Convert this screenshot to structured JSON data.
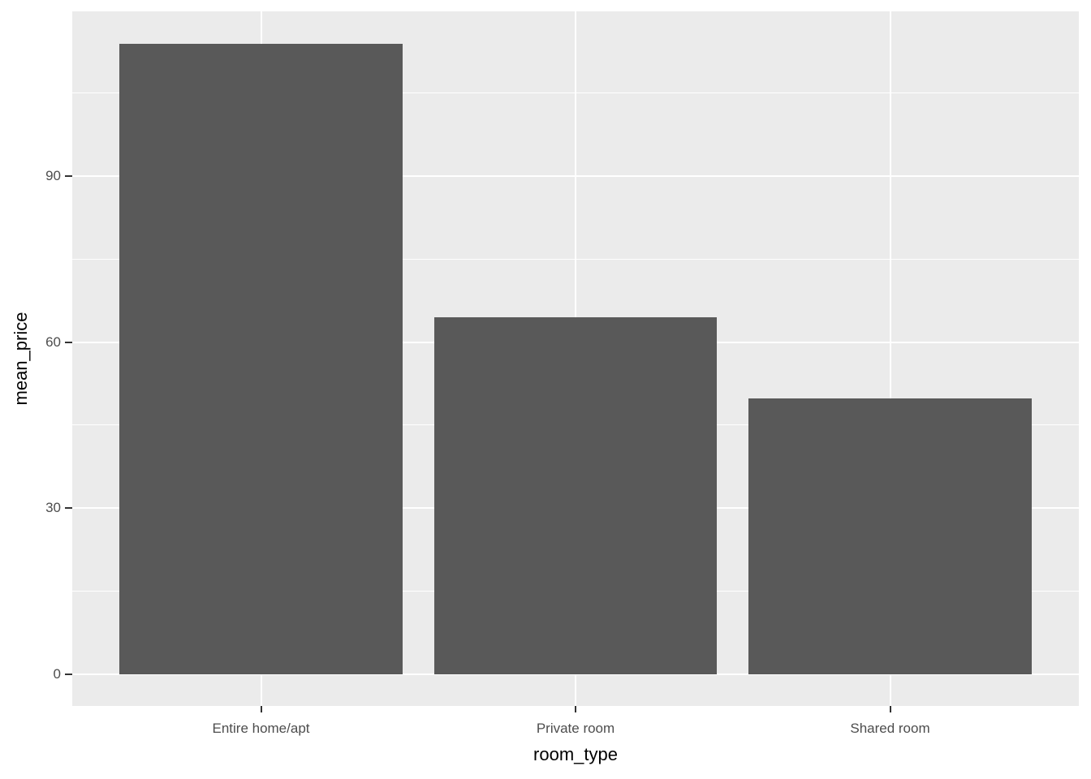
{
  "chart_data": {
    "type": "bar",
    "title": "",
    "xlabel": "room_type",
    "ylabel": "mean_price",
    "categories": [
      "Entire home/apt",
      "Private room",
      "Shared room"
    ],
    "values": [
      113.9,
      64.5,
      49.8
    ],
    "y_ticks": [
      0,
      30,
      60,
      90
    ],
    "ylim": [
      0,
      114
    ],
    "grid": "on",
    "legend": "none",
    "theme": {
      "bar_fill": "#595959",
      "panel_background": "#EBEBEB",
      "gridline_color": "#FFFFFF",
      "tick_label_color": "#4D4D4D",
      "axis_title_color": "#000000",
      "tick_mark_color": "#333333",
      "figure_background": "#FFFFFF"
    }
  }
}
